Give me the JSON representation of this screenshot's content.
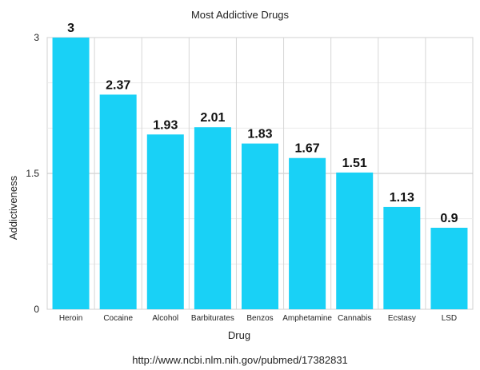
{
  "chart_data": {
    "type": "bar",
    "title": "Most Addictive Drugs",
    "xlabel": "Drug",
    "ylabel": "Addictiveness",
    "categories": [
      "Heroin",
      "Cocaine",
      "Alcohol",
      "Barbiturates",
      "Benzos",
      "Amphetamine",
      "Cannabis",
      "Ecstasy",
      "LSD"
    ],
    "values": [
      3,
      2.37,
      1.93,
      2.01,
      1.83,
      1.67,
      1.51,
      1.13,
      0.9
    ],
    "ylim": [
      0,
      3
    ],
    "yticks": [
      "0",
      "1.5",
      "3"
    ],
    "bar_color": "#19d1f6",
    "grid": true,
    "legend": "none"
  },
  "source": "http://www.ncbi.nlm.nih.gov/pubmed/17382831"
}
